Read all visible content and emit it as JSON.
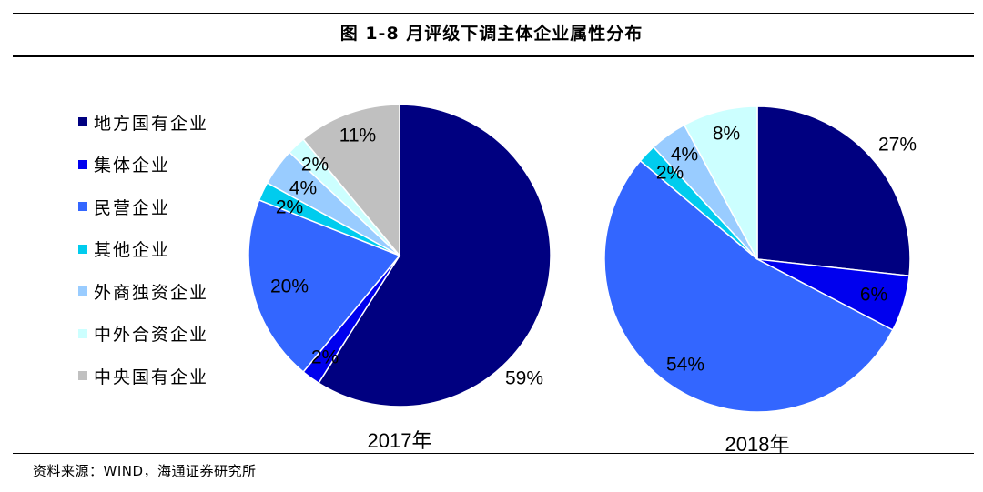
{
  "title": "图  1-8 月评级下调主体企业属性分布",
  "source": "资料来源：WIND，海通证券研究所",
  "colors": {
    "local_soe": "#000080",
    "collective": "#0000ee",
    "private": "#3366ff",
    "other": "#00ccee",
    "foreign_sole": "#99ccff",
    "joint_venture": "#ccffff",
    "central_soe": "#c0c0c0"
  },
  "legend": [
    {
      "label": "地方国有企业",
      "color": "#000080"
    },
    {
      "label": "集体企业",
      "color": "#0000ee"
    },
    {
      "label": "民营企业",
      "color": "#3366ff"
    },
    {
      "label": "其他企业",
      "color": "#00ccee"
    },
    {
      "label": "外商独资企业",
      "color": "#99ccff"
    },
    {
      "label": "中外合资企业",
      "color": "#ccffff"
    },
    {
      "label": "中央国有企业",
      "color": "#c0c0c0"
    }
  ],
  "chart_data": [
    {
      "type": "pie",
      "year_label": "2017年",
      "categories": [
        "地方国有企业",
        "集体企业",
        "民营企业",
        "其他企业",
        "外商独资企业",
        "中外合资企业",
        "中央国有企业"
      ],
      "values": [
        59,
        2,
        20,
        2,
        4,
        2,
        11
      ],
      "value_labels": [
        "59%",
        "2%",
        "20%",
        "2%",
        "4%",
        "2%",
        "11%"
      ],
      "colors": [
        "#000080",
        "#0000ee",
        "#3366ff",
        "#00ccee",
        "#99ccff",
        "#ccffff",
        "#c0c0c0"
      ]
    },
    {
      "type": "pie",
      "year_label": "2018年",
      "categories": [
        "地方国有企业",
        "集体企业",
        "民营企业",
        "其他企业",
        "外商独资企业",
        "中外合资企业"
      ],
      "values": [
        27,
        6,
        54,
        2,
        4,
        8
      ],
      "value_labels": [
        "27%",
        "6%",
        "54%",
        "2%",
        "4%",
        "8%"
      ],
      "colors": [
        "#000080",
        "#0000ee",
        "#3366ff",
        "#00ccee",
        "#99ccff",
        "#ccffff"
      ]
    }
  ]
}
